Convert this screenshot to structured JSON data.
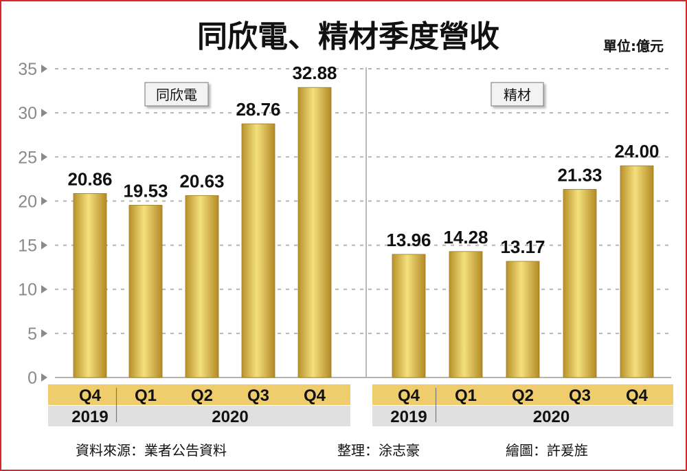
{
  "title": "同欣電、精材季度營收",
  "unit": "單位:億元",
  "chart_data": [
    {
      "type": "bar",
      "panel_label": "同欣電",
      "categories": [
        "Q4",
        "Q1",
        "Q2",
        "Q3",
        "Q4"
      ],
      "years": [
        {
          "label": "2019",
          "span": 1
        },
        {
          "label": "2020",
          "span": 4
        }
      ],
      "values": [
        20.86,
        19.53,
        20.63,
        28.76,
        32.88
      ],
      "value_labels": [
        "20.86",
        "19.53",
        "20.63",
        "28.76",
        "32.88"
      ],
      "ylim": [
        0,
        35
      ],
      "yticks": [
        0,
        5,
        10,
        15,
        20,
        25,
        30,
        35
      ],
      "grid": true
    },
    {
      "type": "bar",
      "panel_label": "精材",
      "categories": [
        "Q4",
        "Q1",
        "Q2",
        "Q3",
        "Q4"
      ],
      "years": [
        {
          "label": "2019",
          "span": 1
        },
        {
          "label": "2020",
          "span": 4
        }
      ],
      "values": [
        13.96,
        14.28,
        13.17,
        21.33,
        24.0
      ],
      "value_labels": [
        "13.96",
        "14.28",
        "13.17",
        "21.33",
        "24.00"
      ],
      "ylim": [
        0,
        35
      ],
      "yticks": [
        0,
        5,
        10,
        15,
        20,
        25,
        30,
        35
      ],
      "grid": true
    }
  ],
  "footer": {
    "source": "資料來源：業者公告資料",
    "compiler": "整理：涂志豪",
    "illustrator": "繪圖：許爰旌"
  },
  "colors": {
    "bar_light": "#f2dc78",
    "bar_dark": "#b8912a",
    "category_band": "#f0cd6c",
    "year_band": "#e0e0e0",
    "frame": "#d6282b",
    "grid": "#b5b5b5"
  }
}
